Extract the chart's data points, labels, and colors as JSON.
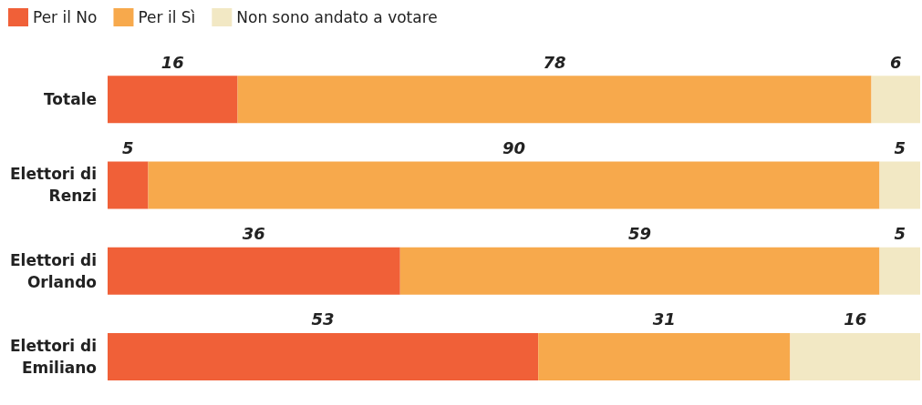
{
  "chart_data": {
    "type": "bar",
    "orientation": "horizontal",
    "stacked": true,
    "data_labels": true,
    "legend": "top left",
    "categories": [
      "Totale",
      "Elettori di Renzi",
      "Elettori di Orlando",
      "Elettori di Emiliano"
    ],
    "series": [
      {
        "name": "Per il No",
        "color": "#f06038",
        "values": [
          16,
          5,
          36,
          53
        ]
      },
      {
        "name": "Per il Sì",
        "color": "#f7a94c",
        "values": [
          78,
          90,
          59,
          31
        ]
      },
      {
        "name": "Non sono andato a votare",
        "color": "#f2e8c4",
        "values": [
          6,
          5,
          5,
          16
        ]
      }
    ]
  }
}
